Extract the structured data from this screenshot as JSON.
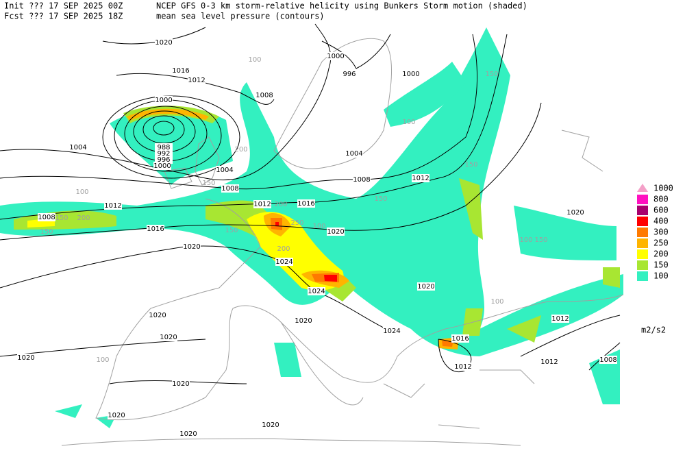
{
  "header": {
    "init_time": "Init  ??? 17 SEP 2025 00Z",
    "init_desc": "NCEP GFS 0-3 km storm-relative helicity using Bunkers Storm motion (shaded)",
    "fcst_time": "Fcst ??? 17 SEP 2025 18Z",
    "fcst_desc": "mean sea level pressure (contours)"
  },
  "legend": {
    "units": "m2/s2",
    "items": [
      {
        "label": "1000",
        "color": "#f4a0c8"
      },
      {
        "label": "800",
        "color": "#ff10c0"
      },
      {
        "label": "600",
        "color": "#a8006e"
      },
      {
        "label": "400",
        "color": "#ff0000"
      },
      {
        "label": "300",
        "color": "#ff7a00"
      },
      {
        "label": "250",
        "color": "#ffb400"
      },
      {
        "label": "200",
        "color": "#ffff00"
      },
      {
        "label": "150",
        "color": "#a8e632"
      },
      {
        "label": "100",
        "color": "#33f0c0"
      }
    ]
  },
  "contour_labels": [
    "1020",
    "1016",
    "1012",
    "1008",
    "1000",
    "1004",
    "988",
    "992",
    "996",
    "1000",
    "1004",
    "1008",
    "1012",
    "1008",
    "1016",
    "1012",
    "1016",
    "1020",
    "1020",
    "1024",
    "1024",
    "1020",
    "1020",
    "1020",
    "1020",
    "1020",
    "1024",
    "1016",
    "1012",
    "1012",
    "1012",
    "1008",
    "1020",
    "1020",
    "1020",
    "1020",
    "1020",
    "1000",
    "996",
    "1000",
    "1004",
    "1008",
    "1012"
  ],
  "shading_labels": [
    "100",
    "150",
    "100",
    "200",
    "150",
    "100",
    "200",
    "150",
    "150",
    "200",
    "250",
    "200",
    "150",
    "150",
    "100",
    "150",
    "100",
    "150",
    "100",
    "100"
  ]
}
